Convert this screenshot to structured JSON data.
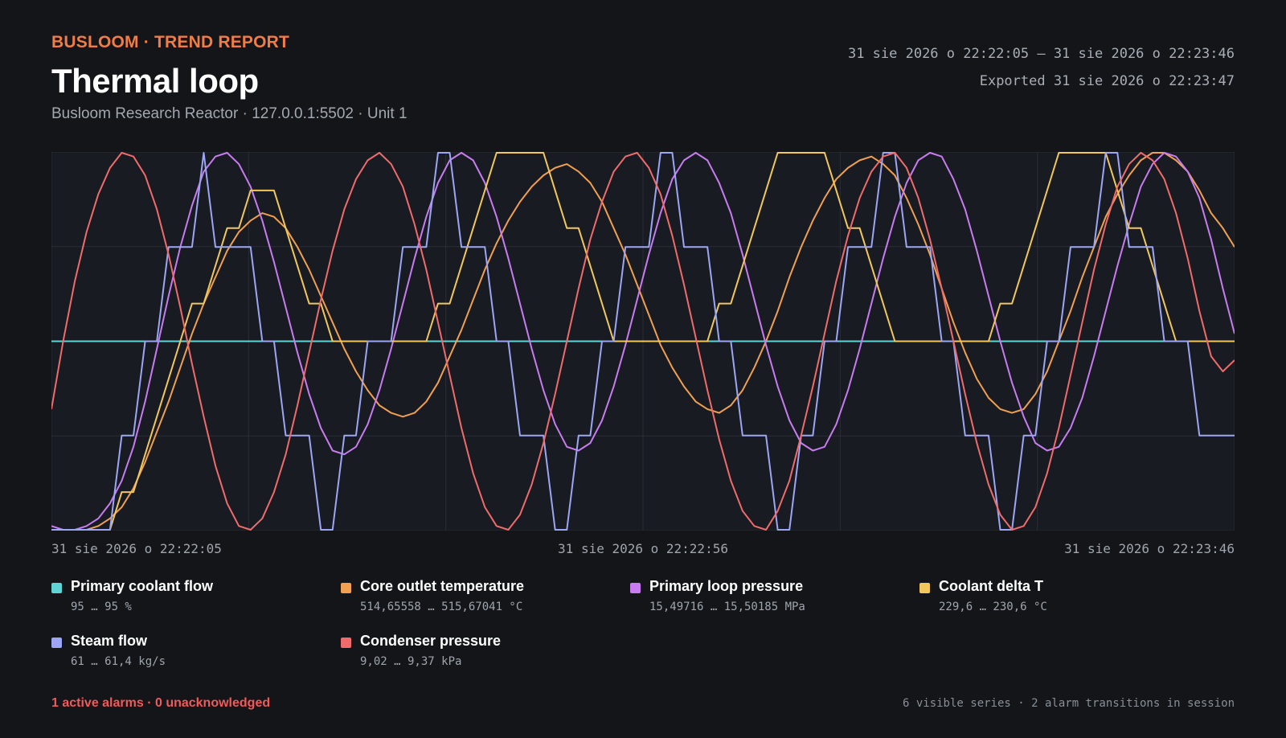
{
  "header": {
    "brand": "BUSLOOM · TREND REPORT",
    "title": "Thermal loop",
    "subtitle": "Busloom Research Reactor · 127.0.0.1:5502 · Unit 1",
    "range": "31 sie 2026 o 22:22:05 — 31 sie 2026 o 22:23:46",
    "exported": "Exported 31 sie 2026 o 22:23:47"
  },
  "colors": {
    "background": "#131519",
    "plot_background": "#181b21",
    "grid": "#2a2e36",
    "brand": "#ef7d45",
    "alarm": "#f05a5a"
  },
  "chart_data": {
    "type": "line",
    "normalized_y": true,
    "ylim": [
      0,
      1
    ],
    "grid": true,
    "legend": "bottom",
    "x_tick_labels": [
      "31 sie 2026 o 22:22:05",
      "31 sie 2026 o 22:22:56",
      "31 sie 2026 o 22:23:46"
    ],
    "x_start_seconds": 0,
    "x_end_seconds": 101,
    "sample_step_seconds": 1,
    "series": [
      {
        "name": "Primary coolant flow",
        "color": "#5fd4d4",
        "range_text": "95 … 95 %",
        "values": [
          0.5,
          0.5,
          0.5,
          0.5,
          0.5,
          0.5,
          0.5,
          0.5,
          0.5,
          0.5,
          0.5,
          0.5,
          0.5,
          0.5,
          0.5,
          0.5,
          0.5,
          0.5,
          0.5,
          0.5,
          0.5,
          0.5,
          0.5,
          0.5,
          0.5,
          0.5,
          0.5,
          0.5,
          0.5,
          0.5,
          0.5,
          0.5,
          0.5,
          0.5,
          0.5,
          0.5,
          0.5,
          0.5,
          0.5,
          0.5,
          0.5,
          0.5,
          0.5,
          0.5,
          0.5,
          0.5,
          0.5,
          0.5,
          0.5,
          0.5,
          0.5,
          0.5,
          0.5,
          0.5,
          0.5,
          0.5,
          0.5,
          0.5,
          0.5,
          0.5,
          0.5,
          0.5,
          0.5,
          0.5,
          0.5,
          0.5,
          0.5,
          0.5,
          0.5,
          0.5,
          0.5,
          0.5,
          0.5,
          0.5,
          0.5,
          0.5,
          0.5,
          0.5,
          0.5,
          0.5,
          0.5,
          0.5,
          0.5,
          0.5,
          0.5,
          0.5,
          0.5,
          0.5,
          0.5,
          0.5,
          0.5,
          0.5,
          0.5,
          0.5,
          0.5,
          0.5,
          0.5,
          0.5,
          0.5,
          0.5,
          0.5,
          0.5
        ]
      },
      {
        "name": "Core outlet temperature",
        "color": "#f0a050",
        "range_text": "514,65558 … 515,67041 °C",
        "values": [
          0.0,
          0.0,
          0.0,
          0.0,
          0.01,
          0.03,
          0.06,
          0.11,
          0.18,
          0.26,
          0.34,
          0.43,
          0.52,
          0.6,
          0.67,
          0.74,
          0.79,
          0.82,
          0.84,
          0.83,
          0.8,
          0.75,
          0.69,
          0.62,
          0.55,
          0.48,
          0.42,
          0.37,
          0.33,
          0.31,
          0.3,
          0.31,
          0.34,
          0.39,
          0.46,
          0.53,
          0.61,
          0.69,
          0.76,
          0.82,
          0.87,
          0.91,
          0.94,
          0.96,
          0.97,
          0.95,
          0.92,
          0.87,
          0.8,
          0.73,
          0.65,
          0.57,
          0.49,
          0.43,
          0.38,
          0.34,
          0.32,
          0.31,
          0.33,
          0.37,
          0.43,
          0.5,
          0.58,
          0.67,
          0.75,
          0.82,
          0.88,
          0.93,
          0.96,
          0.98,
          0.99,
          0.97,
          0.94,
          0.88,
          0.81,
          0.73,
          0.64,
          0.55,
          0.47,
          0.4,
          0.35,
          0.32,
          0.31,
          0.32,
          0.36,
          0.42,
          0.5,
          0.58,
          0.67,
          0.75,
          0.83,
          0.89,
          0.94,
          0.98,
          1.0,
          1.0,
          0.98,
          0.95,
          0.9,
          0.84,
          0.8,
          0.75
        ]
      },
      {
        "name": "Primary loop pressure",
        "color": "#c87cf0",
        "range_text": "15,49716 … 15,50185 MPa",
        "values": [
          0.01,
          0.0,
          0.0,
          0.01,
          0.03,
          0.07,
          0.13,
          0.22,
          0.34,
          0.48,
          0.62,
          0.75,
          0.86,
          0.95,
          0.99,
          1.0,
          0.97,
          0.91,
          0.82,
          0.71,
          0.59,
          0.47,
          0.36,
          0.27,
          0.21,
          0.2,
          0.22,
          0.28,
          0.37,
          0.48,
          0.6,
          0.72,
          0.83,
          0.92,
          0.98,
          1.0,
          0.98,
          0.92,
          0.83,
          0.72,
          0.6,
          0.48,
          0.37,
          0.28,
          0.22,
          0.21,
          0.23,
          0.29,
          0.38,
          0.49,
          0.61,
          0.73,
          0.84,
          0.93,
          0.98,
          1.0,
          0.98,
          0.92,
          0.84,
          0.73,
          0.61,
          0.49,
          0.38,
          0.29,
          0.23,
          0.21,
          0.22,
          0.28,
          0.37,
          0.48,
          0.6,
          0.72,
          0.83,
          0.92,
          0.98,
          1.0,
          0.99,
          0.93,
          0.85,
          0.74,
          0.62,
          0.5,
          0.39,
          0.3,
          0.23,
          0.21,
          0.22,
          0.27,
          0.35,
          0.46,
          0.58,
          0.7,
          0.81,
          0.91,
          0.97,
          1.0,
          0.99,
          0.95,
          0.88,
          0.77,
          0.64,
          0.52
        ]
      },
      {
        "name": "Coolant delta T",
        "color": "#f2c75c",
        "range_text": "229,6 … 230,6 °C",
        "values": [
          0.0,
          0.0,
          0.0,
          0.0,
          0.0,
          0.0,
          0.1,
          0.1,
          0.2,
          0.3,
          0.4,
          0.5,
          0.6,
          0.6,
          0.7,
          0.8,
          0.8,
          0.9,
          0.9,
          0.9,
          0.8,
          0.7,
          0.6,
          0.6,
          0.5,
          0.5,
          0.5,
          0.5,
          0.5,
          0.5,
          0.5,
          0.5,
          0.5,
          0.6,
          0.6,
          0.7,
          0.8,
          0.9,
          1.0,
          1.0,
          1.0,
          1.0,
          1.0,
          0.9,
          0.8,
          0.8,
          0.7,
          0.6,
          0.5,
          0.5,
          0.5,
          0.5,
          0.5,
          0.5,
          0.5,
          0.5,
          0.5,
          0.6,
          0.6,
          0.7,
          0.8,
          0.9,
          1.0,
          1.0,
          1.0,
          1.0,
          1.0,
          0.9,
          0.8,
          0.8,
          0.7,
          0.6,
          0.5,
          0.5,
          0.5,
          0.5,
          0.5,
          0.5,
          0.5,
          0.5,
          0.5,
          0.6,
          0.6,
          0.7,
          0.8,
          0.9,
          1.0,
          1.0,
          1.0,
          1.0,
          1.0,
          0.9,
          0.8,
          0.8,
          0.7,
          0.6,
          0.5,
          0.5,
          0.5,
          0.5,
          0.5,
          0.5
        ]
      },
      {
        "name": "Steam flow",
        "color": "#9ca6f5",
        "range_text": "61 … 61,4 kg/s",
        "values": [
          0.0,
          0.0,
          0.0,
          0.0,
          0.0,
          0.0,
          0.25,
          0.25,
          0.5,
          0.5,
          0.75,
          0.75,
          0.75,
          1.0,
          0.75,
          0.75,
          0.75,
          0.75,
          0.5,
          0.5,
          0.25,
          0.25,
          0.25,
          0.0,
          0.0,
          0.25,
          0.25,
          0.5,
          0.5,
          0.5,
          0.75,
          0.75,
          0.75,
          1.0,
          1.0,
          0.75,
          0.75,
          0.75,
          0.5,
          0.5,
          0.25,
          0.25,
          0.25,
          0.0,
          0.0,
          0.25,
          0.25,
          0.5,
          0.5,
          0.75,
          0.75,
          0.75,
          1.0,
          1.0,
          0.75,
          0.75,
          0.75,
          0.5,
          0.5,
          0.25,
          0.25,
          0.25,
          0.0,
          0.0,
          0.25,
          0.25,
          0.5,
          0.5,
          0.75,
          0.75,
          0.75,
          1.0,
          1.0,
          0.75,
          0.75,
          0.75,
          0.5,
          0.5,
          0.25,
          0.25,
          0.25,
          0.0,
          0.0,
          0.25,
          0.25,
          0.5,
          0.5,
          0.75,
          0.75,
          0.75,
          1.0,
          1.0,
          0.75,
          0.75,
          0.75,
          0.5,
          0.5,
          0.5,
          0.25,
          0.25,
          0.25,
          0.25
        ]
      },
      {
        "name": "Condenser pressure",
        "color": "#f06b6b",
        "range_text": "9,02 … 9,37 kPa",
        "values": [
          0.32,
          0.5,
          0.66,
          0.79,
          0.89,
          0.96,
          1.0,
          0.99,
          0.94,
          0.85,
          0.73,
          0.59,
          0.44,
          0.3,
          0.17,
          0.07,
          0.01,
          0.0,
          0.03,
          0.1,
          0.2,
          0.33,
          0.47,
          0.61,
          0.74,
          0.85,
          0.93,
          0.98,
          1.0,
          0.97,
          0.91,
          0.81,
          0.69,
          0.55,
          0.41,
          0.27,
          0.15,
          0.06,
          0.01,
          0.0,
          0.04,
          0.12,
          0.23,
          0.36,
          0.5,
          0.64,
          0.77,
          0.87,
          0.95,
          0.99,
          1.0,
          0.96,
          0.89,
          0.78,
          0.65,
          0.51,
          0.37,
          0.24,
          0.13,
          0.05,
          0.01,
          0.0,
          0.05,
          0.13,
          0.25,
          0.38,
          0.52,
          0.66,
          0.78,
          0.88,
          0.95,
          0.99,
          1.0,
          0.96,
          0.88,
          0.77,
          0.64,
          0.5,
          0.36,
          0.23,
          0.12,
          0.04,
          0.0,
          0.01,
          0.06,
          0.15,
          0.27,
          0.41,
          0.55,
          0.69,
          0.81,
          0.91,
          0.97,
          1.0,
          0.98,
          0.93,
          0.84,
          0.72,
          0.58,
          0.46,
          0.42,
          0.45
        ]
      }
    ]
  },
  "footer": {
    "alarms": "1 active alarms · 0 unacknowledged",
    "summary": "6 visible series · 2 alarm transitions in session"
  }
}
